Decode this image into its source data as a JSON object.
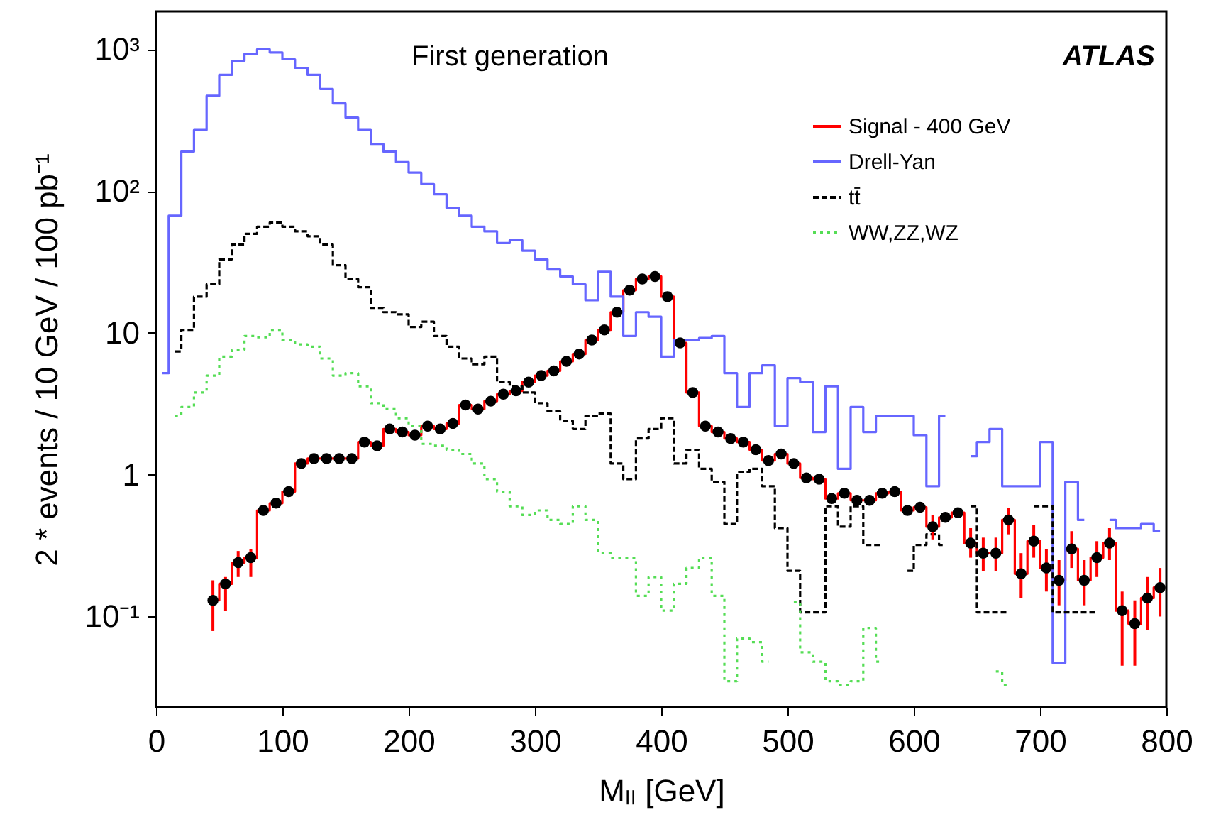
{
  "chart_data": {
    "type": "step",
    "xlabel": "Mₗₗ [GeV]",
    "ylabel": "2 * events / 10 GeV / 100 pb⁻¹",
    "annotations": [
      "First generation",
      "ATLAS"
    ],
    "x": [
      5,
      15,
      25,
      35,
      45,
      55,
      65,
      75,
      85,
      95,
      105,
      115,
      125,
      135,
      145,
      155,
      165,
      175,
      185,
      195,
      205,
      215,
      225,
      235,
      245,
      255,
      265,
      275,
      285,
      295,
      305,
      315,
      325,
      335,
      345,
      355,
      365,
      375,
      385,
      395,
      405,
      415,
      425,
      435,
      445,
      455,
      465,
      475,
      485,
      495,
      505,
      515,
      525,
      535,
      545,
      555,
      565,
      575,
      585,
      595,
      605,
      615,
      625,
      635,
      645,
      655,
      665,
      675,
      685,
      695,
      705,
      715,
      725,
      735,
      745,
      755,
      765,
      775,
      785,
      795
    ],
    "series": [
      {
        "name": "Signal - 400 GeV",
        "color": "#ff0000",
        "line_style": "solid",
        "marker": "circle",
        "values": [
          null,
          null,
          null,
          null,
          0.13,
          0.17,
          0.24,
          0.26,
          0.56,
          0.63,
          0.76,
          1.2,
          1.3,
          1.3,
          1.3,
          1.3,
          1.7,
          1.6,
          2.1,
          2.0,
          1.9,
          2.2,
          2.1,
          2.3,
          3.1,
          2.9,
          3.3,
          3.7,
          3.9,
          4.5,
          5.0,
          5.4,
          6.3,
          7.1,
          8.9,
          10.5,
          14,
          20,
          24,
          25,
          18,
          8.5,
          3.8,
          2.2,
          2.0,
          1.8,
          1.7,
          1.5,
          1.26,
          1.4,
          1.2,
          0.95,
          0.93,
          0.68,
          0.74,
          0.66,
          0.66,
          0.74,
          0.76,
          0.56,
          0.59,
          0.43,
          0.5,
          0.54,
          0.33,
          0.28,
          0.28,
          0.48,
          0.2,
          0.34,
          0.22,
          0.18,
          0.3,
          0.18,
          0.26,
          0.33,
          0.11,
          0.089,
          0.135,
          0.16
        ],
        "errors": [
          null,
          null,
          null,
          null,
          [
            0.079,
            0.18
          ],
          [
            0.11,
            0.19
          ],
          [
            0.19,
            0.29
          ],
          [
            0.19,
            0.3
          ],
          null,
          null,
          null,
          null,
          null,
          null,
          null,
          null,
          null,
          null,
          null,
          null,
          null,
          null,
          null,
          null,
          null,
          null,
          null,
          null,
          null,
          null,
          null,
          null,
          null,
          null,
          null,
          null,
          null,
          null,
          null,
          null,
          null,
          null,
          null,
          null,
          null,
          null,
          null,
          null,
          null,
          null,
          null,
          null,
          null,
          null,
          null,
          null,
          null,
          null,
          null,
          null,
          null,
          [
            0.35,
            0.52
          ],
          null,
          null,
          [
            0.26,
            0.42
          ],
          [
            0.21,
            0.36
          ],
          [
            0.21,
            0.36
          ],
          [
            0.38,
            0.58
          ],
          [
            0.135,
            0.28
          ],
          [
            0.26,
            0.44
          ],
          [
            0.15,
            0.3
          ],
          [
            0.12,
            0.25
          ],
          [
            0.22,
            0.4
          ],
          [
            0.12,
            0.25
          ],
          [
            0.19,
            0.34
          ],
          [
            0.25,
            0.42
          ],
          [
            0.045,
            0.15
          ],
          [
            0.045,
            0.13
          ],
          [
            0.08,
            0.19
          ],
          [
            0.1,
            0.22
          ]
        ]
      },
      {
        "name": "Drell-Yan",
        "color": "#6666ff",
        "line_style": "solid",
        "values": [
          5.2,
          67,
          190,
          270,
          470,
          660,
          830,
          930,
          1000,
          950,
          850,
          740,
          660,
          525,
          415,
          330,
          270,
          215,
          190,
          160,
          135,
          112,
          95,
          76,
          67,
          56,
          52,
          43,
          45,
          38,
          33,
          28,
          25,
          22,
          17,
          27,
          18,
          9.5,
          14,
          13,
          6.8,
          8.9,
          8.9,
          9.2,
          9.5,
          5.2,
          3.0,
          5.2,
          5.9,
          2.2,
          4.8,
          4.5,
          2.0,
          4.2,
          1.1,
          3.0,
          2.0,
          2.6,
          2.6,
          2.6,
          1.9,
          0.83,
          2.6,
          null,
          1.35,
          1.7,
          2.1,
          0.83,
          0.83,
          0.83,
          1.7,
          0.047,
          0.89,
          0.48,
          null,
          0.48,
          0.42,
          0.42,
          0.45,
          0.4
        ]
      },
      {
        "name": "tt̄",
        "color": "#000000",
        "line_style": "dashed",
        "values": [
          null,
          7.4,
          10.5,
          18,
          22,
          33,
          42,
          50,
          56,
          60,
          56,
          52,
          48,
          42,
          30,
          24,
          21,
          15,
          14,
          13.5,
          11,
          12,
          9.5,
          8,
          6.6,
          6,
          6.8,
          4.5,
          4.2,
          3.8,
          3.2,
          2.8,
          2.4,
          2.1,
          2.6,
          2.7,
          1.2,
          0.93,
          1.8,
          2.1,
          2.5,
          1.2,
          1.5,
          1.1,
          0.89,
          0.45,
          1.05,
          1.1,
          0.83,
          0.42,
          0.21,
          0.107,
          0.107,
          0.6,
          0.43,
          0.6,
          0.32,
          0.32,
          null,
          0.21,
          0.32,
          0.38,
          0.32,
          null,
          0.6,
          0.107,
          0.107,
          0.107,
          null,
          0.6,
          0.6,
          0.107,
          0.107,
          0.107,
          0.107,
          null,
          null,
          null,
          null,
          null
        ]
      },
      {
        "name": "WW,ZZ,WZ",
        "color": "#55dd55",
        "line_style": "dotted",
        "values": [
          null,
          2.6,
          3.0,
          3.8,
          5,
          6.8,
          7.6,
          9.5,
          9.3,
          10.5,
          8.9,
          8.3,
          8,
          6.6,
          5,
          5.2,
          4.2,
          3.2,
          2.9,
          2.5,
          2.2,
          1.65,
          1.6,
          1.5,
          1.4,
          1.2,
          0.93,
          0.76,
          0.6,
          0.52,
          0.56,
          0.48,
          0.45,
          0.6,
          0.48,
          0.28,
          0.26,
          0.26,
          0.14,
          0.19,
          0.11,
          0.17,
          0.22,
          0.26,
          0.14,
          0.035,
          0.07,
          0.066,
          0.048,
          null,
          0.126,
          0.056,
          0.048,
          0.035,
          0.033,
          0.035,
          0.083,
          0.048,
          null,
          null,
          null,
          null,
          null,
          null,
          null,
          null,
          0.041,
          0.033,
          null,
          null,
          null,
          null,
          null,
          null,
          null,
          null,
          null,
          null,
          null,
          null
        ]
      }
    ],
    "xlim": [
      0,
      800
    ],
    "xticks": [
      0,
      100,
      200,
      300,
      400,
      500,
      600,
      700,
      800
    ],
    "ylim": [
      0.023,
      1850
    ],
    "log": true,
    "yticks": [
      {
        "value": 0.1,
        "label": "10⁻¹"
      },
      1,
      10,
      {
        "value": 100,
        "label": "10²"
      },
      {
        "value": 1000,
        "label": "10³"
      }
    ],
    "grid": false,
    "legend": "top right"
  }
}
